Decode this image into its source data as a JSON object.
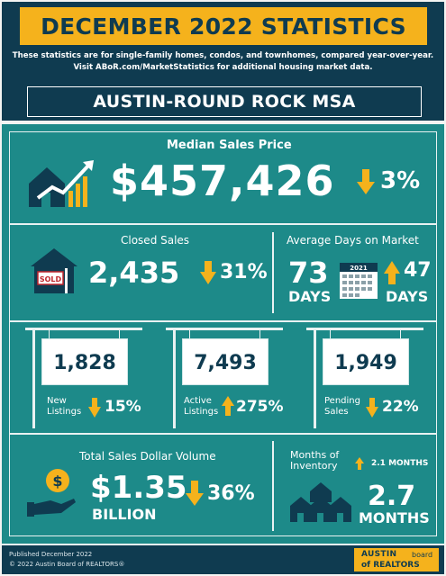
{
  "header": {
    "title": "DECEMBER 2022 STATISTICS",
    "desc_line1": "These statistics are for single-family homes, condos, and townhomes, compared year-over-year.",
    "desc_line2": "Visit ABoR.com/MarketStatistics for additional housing market data.",
    "region": "AUSTIN-ROUND ROCK MSA"
  },
  "median": {
    "label": "Median Sales Price",
    "value": "$457,426",
    "change": "3%",
    "direction": "down"
  },
  "closed": {
    "label": "Closed Sales",
    "value": "2,435",
    "change": "31%",
    "direction": "down",
    "sign_text": "SOLD"
  },
  "days": {
    "label": "Average Days on Market",
    "value": "73",
    "unit": "DAYS",
    "calendar_year": "2021",
    "change": "47",
    "change_unit": "DAYS",
    "direction": "up"
  },
  "listings": [
    {
      "value": "1,828",
      "label1": "New",
      "label2": "Listings",
      "change": "15%",
      "direction": "down"
    },
    {
      "value": "7,493",
      "label1": "Active",
      "label2": "Listings",
      "change": "275%",
      "direction": "up"
    },
    {
      "value": "1,949",
      "label1": "Pending",
      "label2": "Sales",
      "change": "22%",
      "direction": "down"
    }
  ],
  "volume": {
    "label": "Total Sales Dollar Volume",
    "value": "$1.35",
    "unit": "BILLION",
    "change": "36%",
    "direction": "down"
  },
  "inventory": {
    "label1": "Months of",
    "label2": "Inventory",
    "change": "2.1 MONTHS",
    "direction": "up",
    "value": "2.7",
    "unit": "MONTHS"
  },
  "footer": {
    "published": "Published December 2022",
    "copyright": "© 2022 Austin Board of REALTORS®",
    "logo_line1": "AUSTIN",
    "logo_line1b": "board",
    "logo_line2": "of REALTORS"
  },
  "colors": {
    "navy": "#0f3b50",
    "teal": "#1d8a89",
    "gold": "#f5b21c",
    "white": "#ffffff"
  }
}
